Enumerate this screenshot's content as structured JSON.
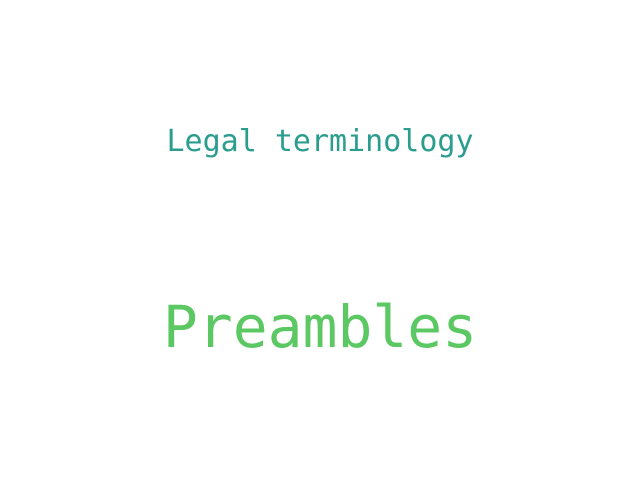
{
  "words": [
    {
      "text": "Legal terminology",
      "color": "#2a9d8f"
    },
    {
      "text": "Preambles",
      "color": "#5cc863"
    }
  ]
}
